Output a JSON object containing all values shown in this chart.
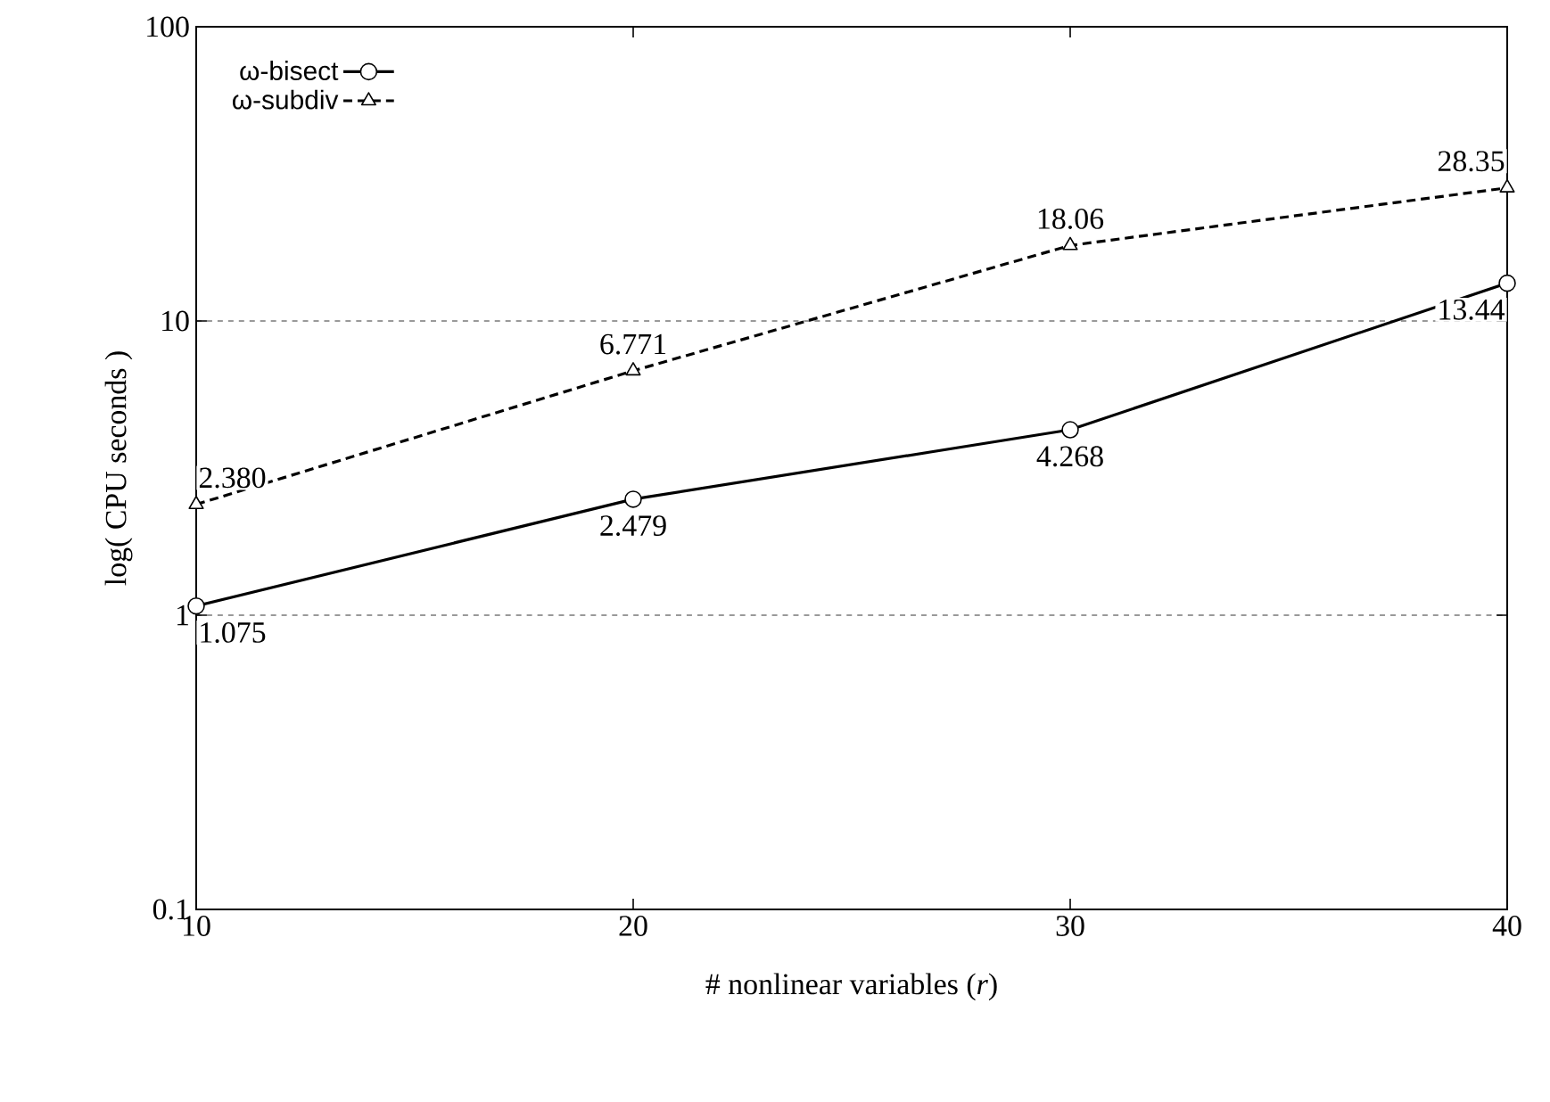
{
  "chart_data": {
    "type": "line",
    "xlabel": "# nonlinear variables (*r*)",
    "ylabel": "log( CPU seconds )",
    "x": [
      10,
      20,
      30,
      40
    ],
    "series": [
      {
        "name": "ω-bisect",
        "color": "#000000",
        "values": [
          1.075,
          2.479,
          4.268,
          13.44
        ],
        "value_labels": [
          "1.075",
          "2.479",
          "4.268",
          "13.44"
        ],
        "marker": "circle",
        "line_style": "solid"
      },
      {
        "name": "ω-subdiv",
        "color": "#000000",
        "values": [
          2.38,
          6.771,
          18.06,
          28.35
        ],
        "value_labels": [
          "2.380",
          "6.771",
          "18.06",
          "28.35"
        ],
        "marker": "triangle",
        "line_style": "dashed"
      }
    ],
    "log": "y",
    "xlim": [
      10,
      40
    ],
    "ylim": [
      0.1,
      100
    ],
    "xticks": [
      10,
      20,
      30,
      40
    ],
    "yticks": [
      0.1,
      1,
      10,
      100
    ],
    "grid": "y",
    "legend": "top left"
  }
}
